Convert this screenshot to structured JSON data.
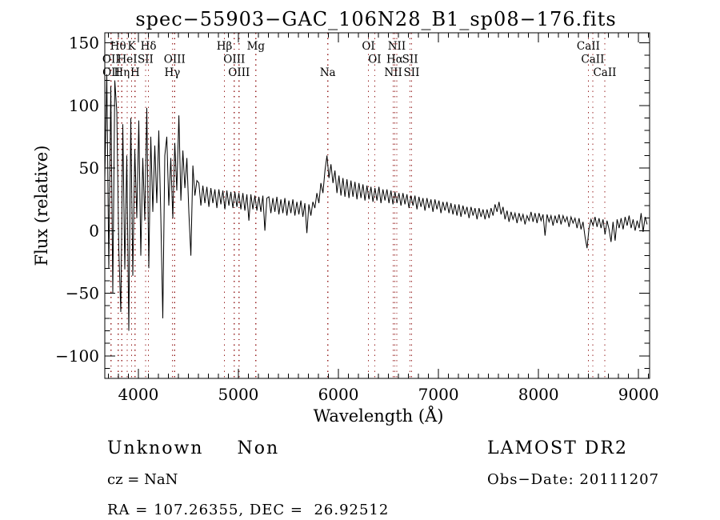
{
  "title": "spec−55903−GAC_106N28_B1_sp08−176.fits",
  "footer": {
    "class_name": "Unknown",
    "subclass": "Non",
    "cz_line": "cz = NaN",
    "ra_dec_line": "RA = 107.26355, DEC =  26.92512",
    "survey": "LAMOST DR2",
    "obs_date_line": "Obs−Date: 20111207"
  },
  "chart_data": {
    "type": "line",
    "title": "spec−55903−GAC_106N28_B1_sp08−176.fits",
    "xlabel": "Wavelength (Å)",
    "ylabel": "Flux (relative)",
    "xlim": [
      3665,
      9110
    ],
    "ylim": [
      -118,
      158
    ],
    "x_ticks": [
      4000,
      5000,
      6000,
      7000,
      8000,
      9000
    ],
    "x_tick_labels": [
      "4000",
      "5000",
      "6000",
      "7000",
      "8000",
      "9000"
    ],
    "y_ticks": [
      -100,
      -50,
      0,
      50,
      100,
      150
    ],
    "y_tick_labels": [
      "−100",
      "−50",
      "0",
      "50",
      "100",
      "150"
    ],
    "x_minor_step": 100,
    "y_minor_step": 10,
    "grid": false,
    "line_color": "#000000",
    "spectral_line_color": "#992626",
    "spectral_lines": [
      {
        "label": "Hθ",
        "wavelength": 3798,
        "row": 1
      },
      {
        "label": "K",
        "wavelength": 3933,
        "row": 1
      },
      {
        "label": "Hδ",
        "wavelength": 4101,
        "row": 1
      },
      {
        "label": "Hβ",
        "wavelength": 4861,
        "row": 1
      },
      {
        "label": "Mg",
        "wavelength": 5175,
        "row": 1
      },
      {
        "label": "OI",
        "wavelength": 6300,
        "row": 1
      },
      {
        "label": "NII",
        "wavelength": 6583,
        "row": 1
      },
      {
        "label": "CaII",
        "wavelength": 8498,
        "row": 1
      },
      {
        "label": "OII",
        "wavelength": 3727,
        "row": 2
      },
      {
        "label": "HeI",
        "wavelength": 3889,
        "row": 2
      },
      {
        "label": "SII",
        "wavelength": 4072,
        "row": 2
      },
      {
        "label": "OIII",
        "wavelength": 4363,
        "row": 2
      },
      {
        "label": "OIII",
        "wavelength": 4959,
        "row": 2
      },
      {
        "label": "OI",
        "wavelength": 6363,
        "row": 2
      },
      {
        "label": "Hα",
        "wavelength": 6563,
        "row": 2
      },
      {
        "label": "SII",
        "wavelength": 6716,
        "row": 2
      },
      {
        "label": "CaII",
        "wavelength": 8542,
        "row": 2
      },
      {
        "label": "OII",
        "wavelength": 3729,
        "row": 3
      },
      {
        "label": "Hη",
        "wavelength": 3835,
        "row": 3
      },
      {
        "label": "H",
        "wavelength": 3968,
        "row": 3
      },
      {
        "label": "Hγ",
        "wavelength": 4340,
        "row": 3
      },
      {
        "label": "OIII",
        "wavelength": 5007,
        "row": 3
      },
      {
        "label": "Na",
        "wavelength": 5893,
        "row": 3
      },
      {
        "label": "NII",
        "wavelength": 6548,
        "row": 3
      },
      {
        "label": "SII",
        "wavelength": 6731,
        "row": 3
      },
      {
        "label": "CaII",
        "wavelength": 8662,
        "row": 3
      }
    ],
    "series": [
      {
        "name": "flux",
        "x_start": 3665,
        "x_step": 20,
        "values": [
          40,
          125,
          -30,
          115,
          -50,
          120,
          95,
          -15,
          -65,
          85,
          -31,
          60,
          -80,
          90,
          -36,
          65,
          10,
          88,
          -20,
          58,
          8,
          98,
          -30,
          75,
          15,
          68,
          22,
          80,
          12,
          -70,
          60,
          75,
          20,
          58,
          10,
          70,
          32,
          92,
          24,
          64,
          34,
          58,
          14,
          -20,
          52,
          28,
          40,
          38,
          20,
          36,
          22,
          35,
          19,
          34,
          22,
          33,
          18,
          33,
          21,
          32,
          17,
          32,
          20,
          31,
          18,
          31,
          19,
          30,
          17,
          30,
          16,
          29,
          8,
          29,
          17,
          28,
          16,
          27,
          15,
          28,
          0,
          26,
          27,
          14,
          26,
          15,
          27,
          13,
          25,
          14,
          26,
          12,
          24,
          14,
          25,
          12,
          23,
          13,
          24,
          11,
          22,
          -2,
          21,
          12,
          23,
          18,
          30,
          22,
          38,
          30,
          48,
          60,
          42,
          53,
          38,
          48,
          30,
          44,
          28,
          42,
          27,
          41,
          26,
          40,
          27,
          39,
          25,
          38,
          26,
          37,
          24,
          36,
          25,
          35,
          23,
          34,
          24,
          35,
          22,
          33,
          24,
          33,
          22,
          32,
          21,
          31,
          22,
          30,
          20,
          30,
          21,
          29,
          18,
          28,
          20,
          28,
          17,
          27,
          19,
          26,
          16,
          26,
          18,
          25,
          15,
          25,
          17,
          24,
          14,
          23,
          16,
          23,
          14,
          22,
          13,
          21,
          12,
          21,
          11,
          20,
          13,
          19,
          10,
          19,
          12,
          18,
          9,
          18,
          11,
          17,
          9,
          17,
          10,
          18,
          12,
          21,
          15,
          23,
          13,
          19,
          9,
          16,
          7,
          15,
          9,
          14,
          6,
          14,
          8,
          13,
          5,
          12,
          8,
          15,
          7,
          14,
          6,
          14,
          8,
          13,
          -4,
          13,
          7,
          12,
          4,
          12,
          6,
          13,
          5,
          12,
          7,
          11,
          3,
          11,
          6,
          10,
          2,
          10,
          1,
          7,
          -5,
          -14,
          2,
          9,
          4,
          11,
          3,
          10,
          2,
          9,
          -3,
          8,
          1,
          -9,
          7,
          -8,
          9,
          2,
          10,
          1,
          11,
          4,
          12,
          2,
          9,
          0,
          8,
          2,
          14,
          -1,
          11,
          5
        ]
      }
    ]
  }
}
